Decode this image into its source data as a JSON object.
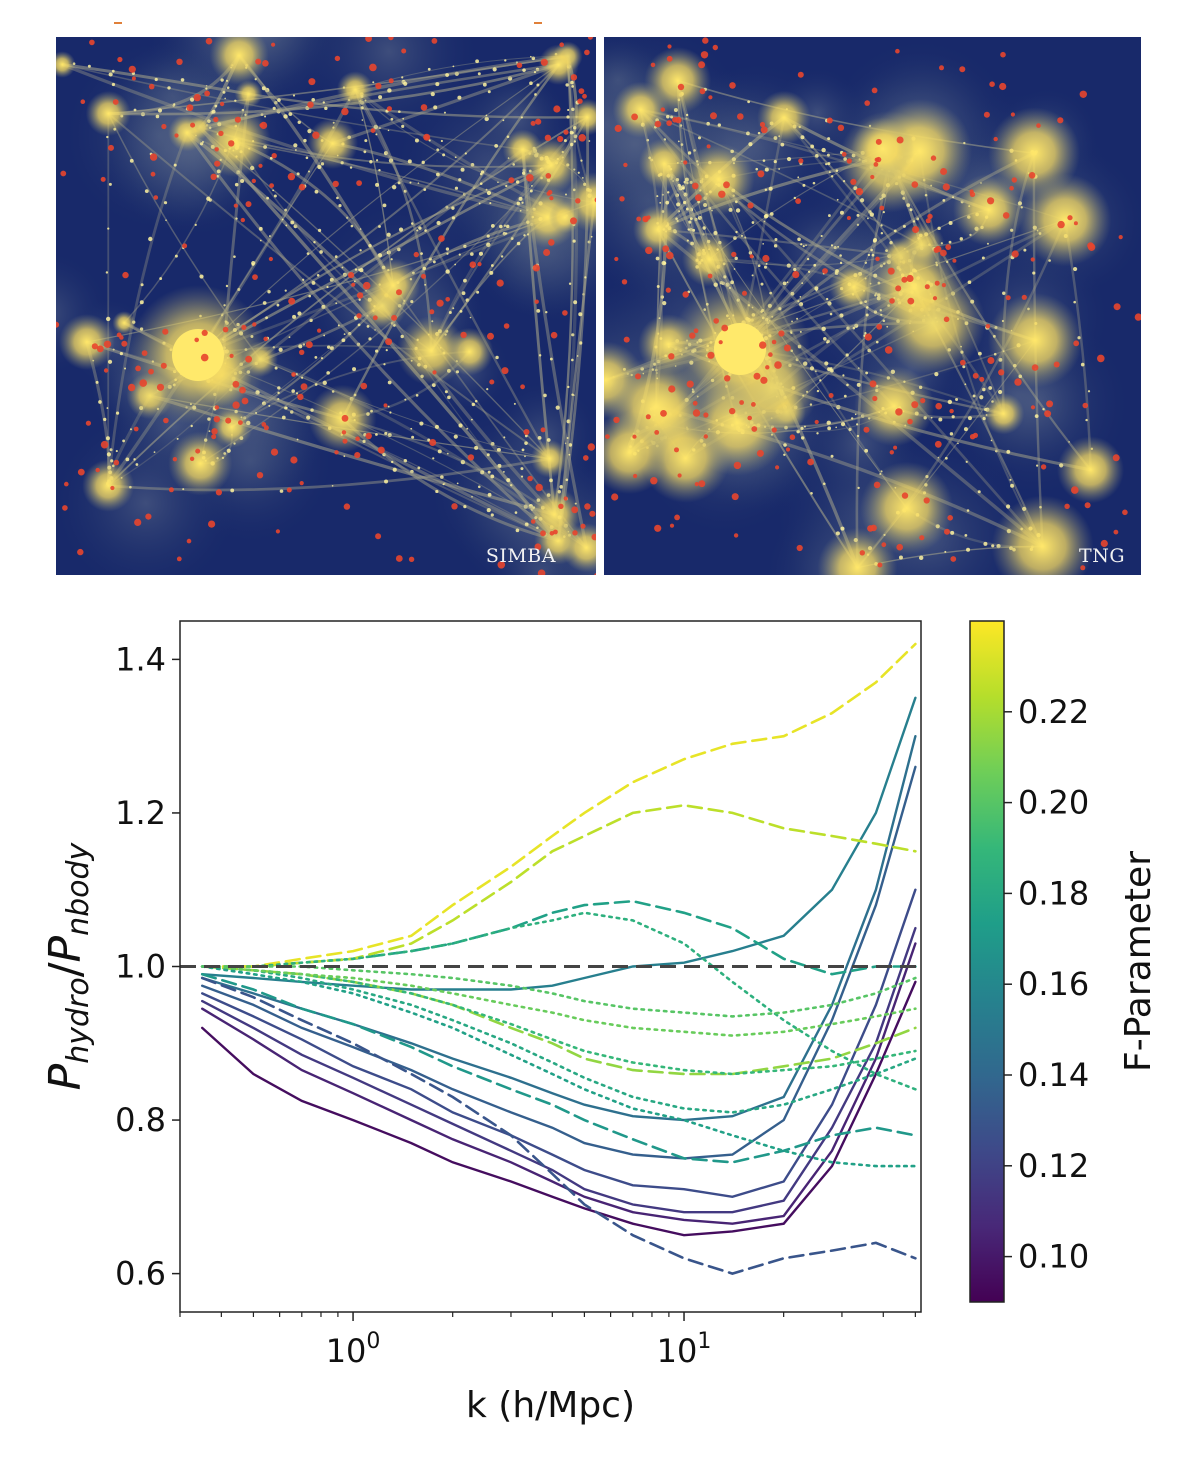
{
  "panels": [
    {
      "label": "SIMBA"
    },
    {
      "label": "TNG"
    }
  ],
  "chart_data": {
    "type": "line",
    "xlabel": "k (h/Mpc)",
    "ylabel_main": "P",
    "ylabel_num_sub": "hydro",
    "ylabel_den_sub": "nbody",
    "xscale": "log",
    "xlim": [
      0.3,
      52
    ],
    "ylim": [
      0.55,
      1.45
    ],
    "xticks": [
      {
        "value": 1,
        "base": "10",
        "exp": "0"
      },
      {
        "value": 10,
        "base": "10",
        "exp": "1"
      }
    ],
    "yticks": [
      "0.6",
      "0.8",
      "1.0",
      "1.2",
      "1.4"
    ],
    "reference_line": 1.0,
    "colorbar": {
      "label": "F-Parameter",
      "range": [
        0.09,
        0.24
      ],
      "ticks": [
        "0.10",
        "0.12",
        "0.14",
        "0.16",
        "0.18",
        "0.20",
        "0.22"
      ],
      "colormap": [
        "#440154",
        "#482878",
        "#3e4989",
        "#31688e",
        "#26828e",
        "#1f9e89",
        "#35b779",
        "#6ece58",
        "#b5de2b",
        "#fde725"
      ]
    },
    "x": [
      0.35,
      0.5,
      0.7,
      1.0,
      1.5,
      2.0,
      3.0,
      4.0,
      5.0,
      7.0,
      10.0,
      14.0,
      20.0,
      28.0,
      38.0,
      50.0
    ],
    "series": [
      {
        "style": "solid",
        "f": 0.095,
        "values": [
          0.92,
          0.86,
          0.825,
          0.8,
          0.77,
          0.745,
          0.72,
          0.7,
          0.685,
          0.665,
          0.65,
          0.655,
          0.665,
          0.74,
          0.86,
          0.98
        ]
      },
      {
        "style": "solid",
        "f": 0.105,
        "values": [
          0.945,
          0.905,
          0.865,
          0.835,
          0.8,
          0.775,
          0.745,
          0.72,
          0.7,
          0.68,
          0.67,
          0.665,
          0.675,
          0.76,
          0.88,
          1.03
        ]
      },
      {
        "style": "solid",
        "f": 0.115,
        "values": [
          0.955,
          0.92,
          0.885,
          0.855,
          0.82,
          0.795,
          0.76,
          0.735,
          0.71,
          0.69,
          0.68,
          0.68,
          0.695,
          0.79,
          0.9,
          1.05
        ]
      },
      {
        "style": "solid",
        "f": 0.125,
        "values": [
          0.965,
          0.935,
          0.905,
          0.87,
          0.84,
          0.81,
          0.78,
          0.755,
          0.735,
          0.715,
          0.71,
          0.7,
          0.72,
          0.82,
          0.95,
          1.1
        ]
      },
      {
        "style": "solid",
        "f": 0.135,
        "values": [
          0.975,
          0.95,
          0.92,
          0.895,
          0.865,
          0.84,
          0.81,
          0.79,
          0.77,
          0.755,
          0.75,
          0.755,
          0.8,
          0.93,
          1.08,
          1.26
        ]
      },
      {
        "style": "solid",
        "f": 0.145,
        "values": [
          0.985,
          0.965,
          0.945,
          0.925,
          0.9,
          0.88,
          0.855,
          0.835,
          0.82,
          0.805,
          0.8,
          0.805,
          0.83,
          0.95,
          1.1,
          1.3
        ]
      },
      {
        "style": "solid",
        "f": 0.155,
        "values": [
          0.99,
          0.985,
          0.98,
          0.975,
          0.97,
          0.97,
          0.97,
          0.975,
          0.985,
          1.0,
          1.005,
          1.02,
          1.04,
          1.1,
          1.2,
          1.35
        ]
      },
      {
        "style": "dashed",
        "f": 0.13,
        "values": [
          0.985,
          0.96,
          0.93,
          0.9,
          0.86,
          0.83,
          0.78,
          0.73,
          0.69,
          0.65,
          0.62,
          0.6,
          0.62,
          0.63,
          0.64,
          0.62
        ]
      },
      {
        "style": "dashed",
        "f": 0.17,
        "values": [
          0.99,
          0.97,
          0.945,
          0.925,
          0.895,
          0.87,
          0.84,
          0.82,
          0.8,
          0.775,
          0.75,
          0.745,
          0.76,
          0.78,
          0.79,
          0.78
        ]
      },
      {
        "style": "dashed",
        "f": 0.175,
        "values": [
          1.0,
          1.0,
          1.005,
          1.01,
          1.02,
          1.03,
          1.05,
          1.07,
          1.08,
          1.085,
          1.07,
          1.05,
          1.01,
          0.99,
          1.0,
          1.0
        ]
      },
      {
        "style": "dashed",
        "f": 0.215,
        "values": [
          1.0,
          0.995,
          0.99,
          0.98,
          0.965,
          0.95,
          0.92,
          0.9,
          0.88,
          0.865,
          0.86,
          0.86,
          0.87,
          0.88,
          0.9,
          0.92
        ]
      },
      {
        "style": "dashed",
        "f": 0.225,
        "values": [
          1.0,
          1.0,
          1.005,
          1.01,
          1.03,
          1.06,
          1.11,
          1.15,
          1.17,
          1.2,
          1.21,
          1.2,
          1.18,
          1.17,
          1.16,
          1.15
        ]
      },
      {
        "style": "dashed",
        "f": 0.235,
        "values": [
          1.0,
          1.0,
          1.01,
          1.02,
          1.04,
          1.08,
          1.13,
          1.17,
          1.2,
          1.24,
          1.27,
          1.29,
          1.3,
          1.33,
          1.37,
          1.42
        ]
      },
      {
        "style": "dotted",
        "f": 0.18,
        "values": [
          1.0,
          0.995,
          0.985,
          0.97,
          0.95,
          0.93,
          0.9,
          0.875,
          0.855,
          0.83,
          0.815,
          0.81,
          0.82,
          0.84,
          0.86,
          0.88
        ]
      },
      {
        "style": "dotted",
        "f": 0.19,
        "values": [
          1.0,
          0.995,
          0.99,
          0.98,
          0.965,
          0.95,
          0.925,
          0.905,
          0.89,
          0.875,
          0.865,
          0.86,
          0.865,
          0.87,
          0.88,
          0.89
        ]
      },
      {
        "style": "dotted",
        "f": 0.185,
        "values": [
          1.0,
          1.0,
          1.005,
          1.01,
          1.02,
          1.03,
          1.05,
          1.06,
          1.07,
          1.06,
          1.03,
          0.98,
          0.93,
          0.89,
          0.86,
          0.84
        ]
      },
      {
        "style": "dotted",
        "f": 0.205,
        "values": [
          1.0,
          0.995,
          0.99,
          0.985,
          0.975,
          0.965,
          0.95,
          0.94,
          0.93,
          0.92,
          0.915,
          0.91,
          0.915,
          0.925,
          0.935,
          0.945
        ]
      },
      {
        "style": "dotted",
        "f": 0.175,
        "values": [
          1.0,
          0.99,
          0.98,
          0.965,
          0.94,
          0.92,
          0.885,
          0.86,
          0.84,
          0.815,
          0.8,
          0.78,
          0.76,
          0.745,
          0.74,
          0.74
        ]
      },
      {
        "style": "dotted",
        "f": 0.2,
        "values": [
          1.0,
          1.0,
          1.0,
          0.995,
          0.99,
          0.985,
          0.975,
          0.965,
          0.955,
          0.945,
          0.94,
          0.935,
          0.94,
          0.95,
          0.965,
          0.985
        ]
      }
    ]
  }
}
